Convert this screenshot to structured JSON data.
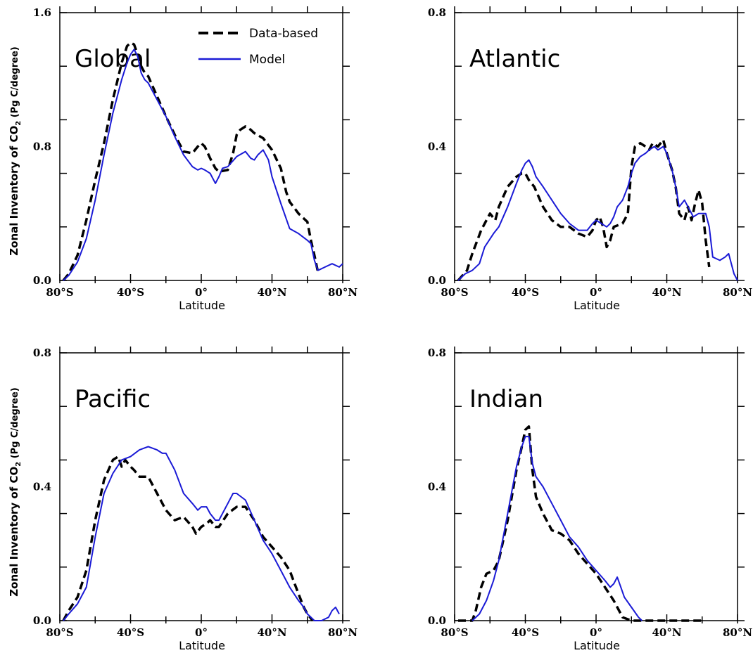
{
  "figure": {
    "ylabel_main": "Zonal Inventory of CO",
    "ylabel_sub": "2",
    "ylabel_units": " (Pg C/degree)",
    "legend": [
      {
        "label": "Data-based",
        "color": "#000000",
        "style": "dashed"
      },
      {
        "label": "Model",
        "color": "#1a1ad6",
        "style": "solid"
      }
    ]
  },
  "chart_data": [
    {
      "type": "line",
      "title": "Global",
      "xlabel": "Latitude",
      "xlim": [
        -80,
        80
      ],
      "ylim": [
        0,
        1.6
      ],
      "xticks": [
        {
          "v": -80,
          "label": "80°S"
        },
        {
          "v": -40,
          "label": "40°S"
        },
        {
          "v": 0,
          "label": "0°"
        },
        {
          "v": 40,
          "label": "40°N"
        },
        {
          "v": 80,
          "label": "80°N"
        }
      ],
      "yticks": [
        {
          "v": 0,
          "label": "0.0"
        },
        {
          "v": 0.8,
          "label": "0.8"
        },
        {
          "v": 1.6,
          "label": "1.6"
        }
      ],
      "series": [
        {
          "name": "Data-based",
          "color": "#000000",
          "dashed": true,
          "x": [
            -78,
            -75,
            -70,
            -65,
            -60,
            -55,
            -50,
            -45,
            -42,
            -40,
            -38,
            -36,
            -34,
            -32,
            -30,
            -25,
            -20,
            -15,
            -10,
            -5,
            -2,
            0,
            2,
            5,
            8,
            10,
            15,
            18,
            20,
            22,
            25,
            28,
            30,
            35,
            40,
            45,
            48,
            50,
            55,
            58,
            60,
            62,
            64,
            66
          ],
          "y": [
            0.0,
            0.04,
            0.15,
            0.36,
            0.6,
            0.82,
            1.08,
            1.3,
            1.4,
            1.42,
            1.41,
            1.35,
            1.28,
            1.24,
            1.22,
            1.1,
            0.98,
            0.87,
            0.77,
            0.76,
            0.8,
            0.82,
            0.8,
            0.73,
            0.67,
            0.65,
            0.66,
            0.76,
            0.87,
            0.9,
            0.92,
            0.9,
            0.88,
            0.85,
            0.78,
            0.67,
            0.53,
            0.47,
            0.4,
            0.37,
            0.35,
            0.24,
            0.15,
            0.05
          ]
        },
        {
          "name": "Model",
          "color": "#1a1ad6",
          "dashed": false,
          "x": [
            -78,
            -75,
            -70,
            -65,
            -60,
            -55,
            -50,
            -45,
            -42,
            -40,
            -38,
            -36,
            -34,
            -32,
            -30,
            -25,
            -20,
            -15,
            -10,
            -5,
            -2,
            0,
            2,
            5,
            8,
            10,
            12,
            15,
            20,
            25,
            28,
            30,
            32,
            35,
            38,
            40,
            45,
            50,
            55,
            60,
            62,
            64,
            66,
            70,
            74,
            78,
            80
          ],
          "y": [
            0.0,
            0.03,
            0.11,
            0.25,
            0.48,
            0.75,
            1.0,
            1.2,
            1.3,
            1.35,
            1.38,
            1.34,
            1.24,
            1.2,
            1.18,
            1.08,
            0.98,
            0.86,
            0.75,
            0.68,
            0.66,
            0.67,
            0.66,
            0.64,
            0.58,
            0.62,
            0.67,
            0.68,
            0.74,
            0.77,
            0.73,
            0.72,
            0.75,
            0.78,
            0.72,
            0.62,
            0.46,
            0.31,
            0.28,
            0.24,
            0.22,
            0.12,
            0.06,
            0.08,
            0.1,
            0.08,
            0.1
          ]
        }
      ]
    },
    {
      "type": "line",
      "title": "Atlantic",
      "xlabel": "Latitude",
      "xlim": [
        -80,
        80
      ],
      "ylim": [
        0,
        0.8
      ],
      "xticks": [
        {
          "v": -80,
          "label": "80°S"
        },
        {
          "v": -40,
          "label": "40°S"
        },
        {
          "v": 0,
          "label": "0°"
        },
        {
          "v": 40,
          "label": "40°N"
        },
        {
          "v": 80,
          "label": "80°N"
        }
      ],
      "yticks": [
        {
          "v": 0,
          "label": "0.0"
        },
        {
          "v": 0.4,
          "label": "0.4"
        },
        {
          "v": 0.8,
          "label": "0.8"
        }
      ],
      "series": [
        {
          "name": "Data-based",
          "color": "#000000",
          "dashed": true,
          "x": [
            -78,
            -73,
            -70,
            -65,
            -60,
            -57,
            -55,
            -50,
            -45,
            -42,
            -40,
            -38,
            -35,
            -30,
            -25,
            -20,
            -15,
            -10,
            -5,
            -2,
            0,
            2,
            4,
            6,
            8,
            10,
            15,
            18,
            20,
            22,
            25,
            28,
            30,
            32,
            35,
            38,
            40,
            43,
            45,
            47,
            50,
            52,
            54,
            56,
            58,
            60,
            62,
            64
          ],
          "y": [
            0.0,
            0.03,
            0.08,
            0.15,
            0.2,
            0.18,
            0.22,
            0.28,
            0.31,
            0.32,
            0.32,
            0.3,
            0.28,
            0.22,
            0.18,
            0.16,
            0.16,
            0.14,
            0.13,
            0.15,
            0.18,
            0.19,
            0.16,
            0.1,
            0.12,
            0.16,
            0.17,
            0.2,
            0.34,
            0.4,
            0.41,
            0.4,
            0.39,
            0.41,
            0.4,
            0.42,
            0.38,
            0.33,
            0.28,
            0.2,
            0.18,
            0.22,
            0.18,
            0.23,
            0.27,
            0.23,
            0.12,
            0.04
          ]
        },
        {
          "name": "Model",
          "color": "#1a1ad6",
          "dashed": false,
          "x": [
            -78,
            -74,
            -70,
            -66,
            -63,
            -58,
            -55,
            -50,
            -45,
            -42,
            -40,
            -38,
            -36,
            -34,
            -30,
            -25,
            -20,
            -15,
            -10,
            -5,
            -2,
            0,
            3,
            6,
            8,
            10,
            12,
            15,
            18,
            20,
            22,
            25,
            28,
            30,
            33,
            35,
            38,
            40,
            43,
            45,
            47,
            50,
            52,
            55,
            58,
            60,
            62,
            64,
            66,
            70,
            73,
            75,
            78,
            80
          ],
          "y": [
            0.0,
            0.02,
            0.03,
            0.05,
            0.1,
            0.14,
            0.16,
            0.22,
            0.29,
            0.33,
            0.35,
            0.36,
            0.34,
            0.31,
            0.28,
            0.24,
            0.2,
            0.17,
            0.15,
            0.15,
            0.17,
            0.18,
            0.17,
            0.16,
            0.17,
            0.19,
            0.22,
            0.24,
            0.28,
            0.32,
            0.35,
            0.37,
            0.38,
            0.39,
            0.4,
            0.39,
            0.4,
            0.38,
            0.33,
            0.28,
            0.22,
            0.24,
            0.22,
            0.19,
            0.2,
            0.2,
            0.2,
            0.16,
            0.07,
            0.06,
            0.07,
            0.08,
            0.02,
            0.0
          ]
        }
      ]
    },
    {
      "type": "line",
      "title": "Pacific",
      "xlabel": "Latitude",
      "xlim": [
        -80,
        80
      ],
      "ylim": [
        0,
        0.8
      ],
      "xticks": [
        {
          "v": -80,
          "label": "80°S"
        },
        {
          "v": -40,
          "label": "40°S"
        },
        {
          "v": 0,
          "label": "0°"
        },
        {
          "v": 40,
          "label": "40°N"
        },
        {
          "v": 80,
          "label": "80°N"
        }
      ],
      "yticks": [
        {
          "v": 0,
          "label": "0.0"
        },
        {
          "v": 0.4,
          "label": "0.4"
        },
        {
          "v": 0.8,
          "label": "0.8"
        }
      ],
      "series": [
        {
          "name": "Data-based",
          "color": "#000000",
          "dashed": true,
          "x": [
            -78,
            -75,
            -70,
            -65,
            -60,
            -55,
            -50,
            -47,
            -45,
            -43,
            -40,
            -38,
            -35,
            -30,
            -25,
            -20,
            -15,
            -10,
            -5,
            -3,
            0,
            3,
            5,
            8,
            10,
            15,
            20,
            25,
            30,
            35,
            40,
            45,
            50,
            55,
            58,
            60,
            63
          ],
          "y": [
            0.0,
            0.03,
            0.07,
            0.15,
            0.3,
            0.42,
            0.48,
            0.49,
            0.46,
            0.48,
            0.46,
            0.45,
            0.43,
            0.43,
            0.38,
            0.33,
            0.3,
            0.31,
            0.28,
            0.26,
            0.28,
            0.29,
            0.3,
            0.28,
            0.28,
            0.32,
            0.34,
            0.34,
            0.3,
            0.25,
            0.22,
            0.19,
            0.15,
            0.08,
            0.04,
            0.02,
            0.0
          ]
        },
        {
          "name": "Model",
          "color": "#1a1ad6",
          "dashed": false,
          "x": [
            -78,
            -75,
            -70,
            -65,
            -60,
            -55,
            -50,
            -45,
            -40,
            -35,
            -30,
            -25,
            -22,
            -20,
            -15,
            -10,
            -5,
            -2,
            0,
            3,
            5,
            8,
            10,
            15,
            18,
            20,
            25,
            30,
            35,
            40,
            45,
            50,
            55,
            58,
            60,
            64,
            68,
            72,
            74,
            76,
            78
          ],
          "y": [
            0.0,
            0.02,
            0.05,
            0.1,
            0.25,
            0.38,
            0.44,
            0.48,
            0.49,
            0.51,
            0.52,
            0.51,
            0.5,
            0.5,
            0.45,
            0.38,
            0.35,
            0.33,
            0.34,
            0.34,
            0.32,
            0.3,
            0.3,
            0.35,
            0.38,
            0.38,
            0.36,
            0.3,
            0.24,
            0.2,
            0.15,
            0.1,
            0.06,
            0.04,
            0.02,
            0.0,
            0.0,
            0.01,
            0.03,
            0.04,
            0.02
          ]
        }
      ]
    },
    {
      "type": "line",
      "title": "Indian",
      "xlabel": "Latitude",
      "xlim": [
        -80,
        80
      ],
      "ylim": [
        0,
        0.8
      ],
      "xticks": [
        {
          "v": -80,
          "label": "80°S"
        },
        {
          "v": -40,
          "label": "40°S"
        },
        {
          "v": 0,
          "label": "0°"
        },
        {
          "v": 40,
          "label": "40°N"
        },
        {
          "v": 80,
          "label": "80°N"
        }
      ],
      "yticks": [
        {
          "v": 0,
          "label": "0.0"
        },
        {
          "v": 0.4,
          "label": "0.4"
        },
        {
          "v": 0.8,
          "label": "0.8"
        }
      ],
      "series": [
        {
          "name": "Data-based",
          "color": "#000000",
          "dashed": true,
          "x": [
            -78,
            -70,
            -68,
            -65,
            -62,
            -58,
            -55,
            -50,
            -45,
            -42,
            -40,
            -38,
            -36,
            -34,
            -30,
            -25,
            -20,
            -15,
            -10,
            -5,
            0,
            5,
            10,
            15,
            20,
            25,
            30,
            40,
            50,
            60
          ],
          "y": [
            0.0,
            0.0,
            0.03,
            0.1,
            0.14,
            0.15,
            0.18,
            0.3,
            0.45,
            0.52,
            0.57,
            0.58,
            0.45,
            0.37,
            0.32,
            0.27,
            0.26,
            0.24,
            0.2,
            0.17,
            0.14,
            0.1,
            0.06,
            0.01,
            0.0,
            0.0,
            0.0,
            0.0,
            0.0,
            0.0
          ]
        },
        {
          "name": "Model",
          "color": "#1a1ad6",
          "dashed": false,
          "x": [
            -70,
            -66,
            -62,
            -58,
            -55,
            -50,
            -45,
            -42,
            -40,
            -38,
            -36,
            -34,
            -30,
            -25,
            -20,
            -15,
            -10,
            -5,
            0,
            5,
            8,
            10,
            12,
            14,
            16,
            20,
            24,
            26
          ],
          "y": [
            0.0,
            0.02,
            0.06,
            0.12,
            0.18,
            0.32,
            0.46,
            0.52,
            0.55,
            0.55,
            0.47,
            0.43,
            0.4,
            0.35,
            0.3,
            0.25,
            0.22,
            0.18,
            0.15,
            0.12,
            0.1,
            0.11,
            0.13,
            0.1,
            0.07,
            0.04,
            0.01,
            0.0
          ]
        }
      ]
    }
  ]
}
